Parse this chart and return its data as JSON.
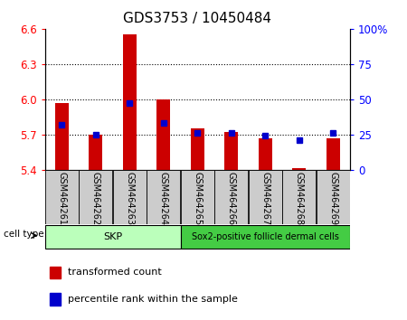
{
  "title": "GDS3753 / 10450484",
  "samples": [
    "GSM464261",
    "GSM464262",
    "GSM464263",
    "GSM464264",
    "GSM464265",
    "GSM464266",
    "GSM464267",
    "GSM464268",
    "GSM464269"
  ],
  "transformed_counts": [
    5.97,
    5.7,
    6.55,
    6.0,
    5.75,
    5.72,
    5.67,
    5.41,
    5.67
  ],
  "percentile_ranks": [
    32,
    25,
    47,
    33,
    26,
    26,
    24,
    21,
    26
  ],
  "ylim_left": [
    5.4,
    6.6
  ],
  "ylim_right": [
    0,
    100
  ],
  "left_ticks": [
    5.4,
    5.7,
    6.0,
    6.3,
    6.6
  ],
  "right_ticks": [
    0,
    25,
    50,
    75,
    100
  ],
  "grid_values": [
    5.7,
    6.0,
    6.3
  ],
  "bar_color": "#cc0000",
  "dot_color": "#0000cc",
  "bar_width": 0.4,
  "skp_label": "SKP",
  "sox2_label": "Sox2-positive follicle dermal cells",
  "cell_type_label": "cell type",
  "legend_items": [
    "transformed count",
    "percentile rank within the sample"
  ],
  "skp_color": "#bbffbb",
  "sox2_color": "#44cc44",
  "title_fontsize": 11,
  "tick_fontsize": 8.5,
  "label_fontsize": 7
}
